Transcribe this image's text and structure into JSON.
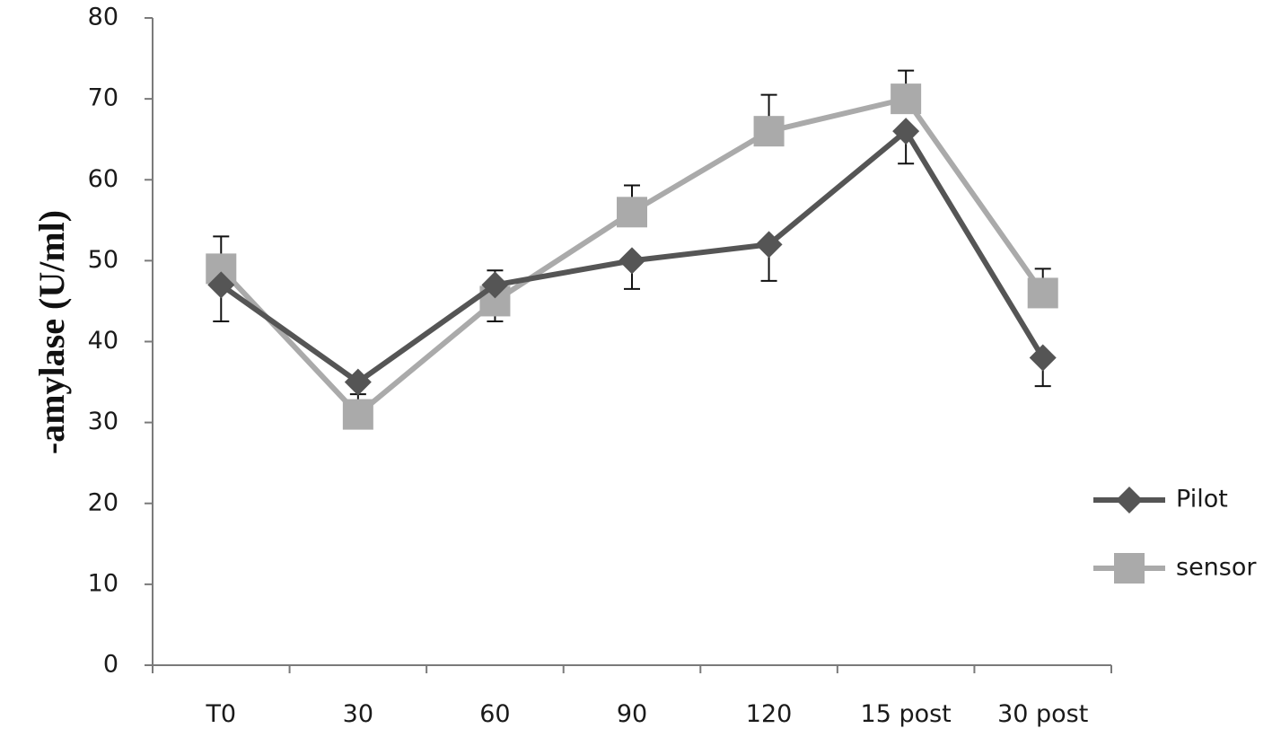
{
  "chart_data": {
    "type": "line",
    "title": "",
    "xlabel": "",
    "ylabel": "-amylase (U/ml)",
    "categories": [
      "T0",
      "30",
      "60",
      "90",
      "120",
      "15  post",
      "30  post"
    ],
    "ylim": [
      0,
      80
    ],
    "yticks": [
      0,
      10,
      20,
      30,
      40,
      50,
      60,
      70,
      80
    ],
    "grid": false,
    "legend_position": "right",
    "series": [
      {
        "name": "Pilot",
        "marker": "diamond",
        "color": "#555555",
        "values": [
          47,
          35,
          47,
          50,
          52,
          66,
          38
        ],
        "error_low": [
          4.5,
          0,
          0,
          3.5,
          4.5,
          4,
          3.5
        ],
        "error_high": [
          0,
          0,
          1.8,
          0,
          0,
          0,
          0
        ]
      },
      {
        "name": "sensor",
        "marker": "square",
        "color": "#aaaaaa",
        "values": [
          49,
          31,
          45,
          56,
          66,
          70,
          46
        ],
        "error_low": [
          0,
          0,
          2.5,
          0,
          0,
          0,
          0
        ],
        "error_high": [
          4,
          2.5,
          0,
          3.3,
          4.5,
          3.5,
          3
        ]
      }
    ]
  }
}
